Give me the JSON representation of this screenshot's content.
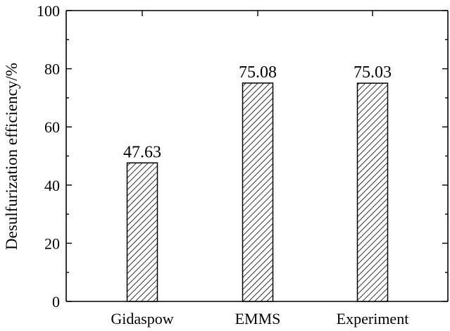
{
  "chart_data": {
    "type": "bar",
    "categories": [
      "Gidaspow",
      "EMMS",
      "Experiment"
    ],
    "values": [
      47.63,
      75.08,
      75.03
    ],
    "data_labels": [
      "47.63",
      "75.08",
      "75.03"
    ],
    "title": "",
    "xlabel": "",
    "ylabel": "Desulfurization efficiency/%",
    "ylim": [
      0,
      100
    ],
    "yticks": [
      0,
      20,
      40,
      60,
      80,
      100
    ],
    "grid": false,
    "bar_fill": "diagonal-hatch",
    "colors": {
      "bar_stroke": "#000000",
      "hatch": "#000000",
      "background": "#ffffff"
    }
  }
}
